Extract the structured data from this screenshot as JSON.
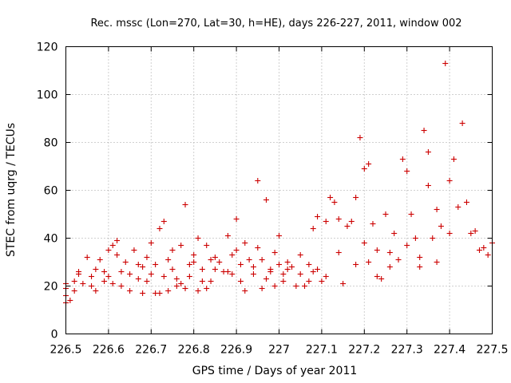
{
  "chart_data": {
    "type": "scatter",
    "title": "Rec. mssc (Lon=270, Lat=30, h=HE), days 226-227, 2011, window 002",
    "xlabel": "GPS time / Days of year 2011",
    "ylabel": "STEC from uqrg / TECUs",
    "xlim": [
      226.5,
      227.5
    ],
    "ylim": [
      0,
      120
    ],
    "xticks": [
      226.5,
      226.6,
      226.7,
      226.8,
      226.9,
      227.0,
      227.1,
      227.2,
      227.3,
      227.4,
      227.5
    ],
    "xtick_labels": [
      "226.5",
      "226.6",
      "226.7",
      "226.8",
      "226.9",
      "227",
      "227.1",
      "227.2",
      "227.3",
      "227.4",
      "227.5"
    ],
    "yticks": [
      0,
      20,
      40,
      60,
      80,
      100,
      120
    ],
    "ytick_labels": [
      "0",
      "20",
      "40",
      "60",
      "80",
      "100",
      "120"
    ],
    "grid": true,
    "marker": "+",
    "color": "#cc0000",
    "series": [
      {
        "name": "STEC",
        "points": [
          [
            226.5,
            13
          ],
          [
            226.5,
            16
          ],
          [
            226.5,
            19
          ],
          [
            226.5,
            21
          ],
          [
            226.51,
            14
          ],
          [
            226.52,
            18
          ],
          [
            226.52,
            22
          ],
          [
            226.53,
            25
          ],
          [
            226.53,
            26
          ],
          [
            226.54,
            21
          ],
          [
            226.55,
            32
          ],
          [
            226.56,
            24
          ],
          [
            226.56,
            20
          ],
          [
            226.57,
            27
          ],
          [
            226.57,
            18
          ],
          [
            226.58,
            31
          ],
          [
            226.59,
            22
          ],
          [
            226.59,
            26
          ],
          [
            226.6,
            35
          ],
          [
            226.6,
            24
          ],
          [
            226.61,
            21
          ],
          [
            226.61,
            37
          ],
          [
            226.62,
            39
          ],
          [
            226.62,
            33
          ],
          [
            226.63,
            20
          ],
          [
            226.63,
            26
          ],
          [
            226.64,
            30
          ],
          [
            226.65,
            18
          ],
          [
            226.65,
            25
          ],
          [
            226.66,
            35
          ],
          [
            226.67,
            23
          ],
          [
            226.67,
            29
          ],
          [
            226.68,
            17
          ],
          [
            226.68,
            28
          ],
          [
            226.69,
            32
          ],
          [
            226.69,
            22
          ],
          [
            226.7,
            38
          ],
          [
            226.7,
            25
          ],
          [
            226.71,
            17
          ],
          [
            226.71,
            29
          ],
          [
            226.72,
            17
          ],
          [
            226.72,
            44
          ],
          [
            226.73,
            47
          ],
          [
            226.73,
            24
          ],
          [
            226.74,
            31
          ],
          [
            226.74,
            18
          ],
          [
            226.75,
            35
          ],
          [
            226.75,
            27
          ],
          [
            226.76,
            20
          ],
          [
            226.76,
            23
          ],
          [
            226.77,
            21
          ],
          [
            226.77,
            37
          ],
          [
            226.78,
            54
          ],
          [
            226.78,
            19
          ],
          [
            226.79,
            29
          ],
          [
            226.79,
            24
          ],
          [
            226.8,
            30
          ],
          [
            226.8,
            33
          ],
          [
            226.81,
            18
          ],
          [
            226.81,
            40
          ],
          [
            226.82,
            22
          ],
          [
            226.82,
            27
          ],
          [
            226.83,
            19
          ],
          [
            226.83,
            37
          ],
          [
            226.84,
            31
          ],
          [
            226.84,
            22
          ],
          [
            226.85,
            27
          ],
          [
            226.85,
            32
          ],
          [
            226.86,
            30
          ],
          [
            226.87,
            26
          ],
          [
            226.88,
            41
          ],
          [
            226.88,
            26
          ],
          [
            226.89,
            33
          ],
          [
            226.89,
            25
          ],
          [
            226.9,
            48
          ],
          [
            226.9,
            35
          ],
          [
            226.91,
            22
          ],
          [
            226.91,
            29
          ],
          [
            226.92,
            18
          ],
          [
            226.92,
            38
          ],
          [
            226.93,
            31
          ],
          [
            226.94,
            25
          ],
          [
            226.94,
            28
          ],
          [
            226.95,
            64
          ],
          [
            226.95,
            36
          ],
          [
            226.96,
            19
          ],
          [
            226.96,
            31
          ],
          [
            226.97,
            56
          ],
          [
            226.97,
            23
          ],
          [
            226.98,
            26
          ],
          [
            226.98,
            27
          ],
          [
            226.99,
            34
          ],
          [
            226.99,
            20
          ],
          [
            227.0,
            41
          ],
          [
            227.0,
            29
          ],
          [
            227.01,
            22
          ],
          [
            227.01,
            25
          ],
          [
            227.02,
            27
          ],
          [
            227.02,
            30
          ],
          [
            227.03,
            28
          ],
          [
            227.04,
            20
          ],
          [
            227.05,
            33
          ],
          [
            227.05,
            25
          ],
          [
            227.06,
            20
          ],
          [
            227.07,
            29
          ],
          [
            227.07,
            22
          ],
          [
            227.08,
            26
          ],
          [
            227.08,
            44
          ],
          [
            227.09,
            49
          ],
          [
            227.09,
            27
          ],
          [
            227.1,
            22
          ],
          [
            227.11,
            24
          ],
          [
            227.11,
            47
          ],
          [
            227.12,
            57
          ],
          [
            227.13,
            55
          ],
          [
            227.14,
            48
          ],
          [
            227.14,
            34
          ],
          [
            227.15,
            21
          ],
          [
            227.16,
            45
          ],
          [
            227.17,
            47
          ],
          [
            227.18,
            57
          ],
          [
            227.18,
            29
          ],
          [
            227.19,
            82
          ],
          [
            227.2,
            69
          ],
          [
            227.2,
            38
          ],
          [
            227.21,
            71
          ],
          [
            227.21,
            30
          ],
          [
            227.22,
            46
          ],
          [
            227.23,
            35
          ],
          [
            227.23,
            24
          ],
          [
            227.24,
            23
          ],
          [
            227.25,
            50
          ],
          [
            227.26,
            34
          ],
          [
            227.26,
            28
          ],
          [
            227.27,
            42
          ],
          [
            227.28,
            31
          ],
          [
            227.29,
            73
          ],
          [
            227.3,
            68
          ],
          [
            227.3,
            37
          ],
          [
            227.31,
            50
          ],
          [
            227.32,
            40
          ],
          [
            227.33,
            28
          ],
          [
            227.33,
            32
          ],
          [
            227.34,
            85
          ],
          [
            227.35,
            76
          ],
          [
            227.35,
            62
          ],
          [
            227.36,
            40
          ],
          [
            227.37,
            52
          ],
          [
            227.37,
            30
          ],
          [
            227.38,
            45
          ],
          [
            227.39,
            113
          ],
          [
            227.4,
            64
          ],
          [
            227.4,
            42
          ],
          [
            227.41,
            73
          ],
          [
            227.42,
            53
          ],
          [
            227.43,
            88
          ],
          [
            227.44,
            55
          ],
          [
            227.45,
            42
          ],
          [
            227.46,
            43
          ],
          [
            227.47,
            35
          ],
          [
            227.48,
            36
          ],
          [
            227.49,
            33
          ],
          [
            227.5,
            38
          ]
        ]
      }
    ]
  }
}
